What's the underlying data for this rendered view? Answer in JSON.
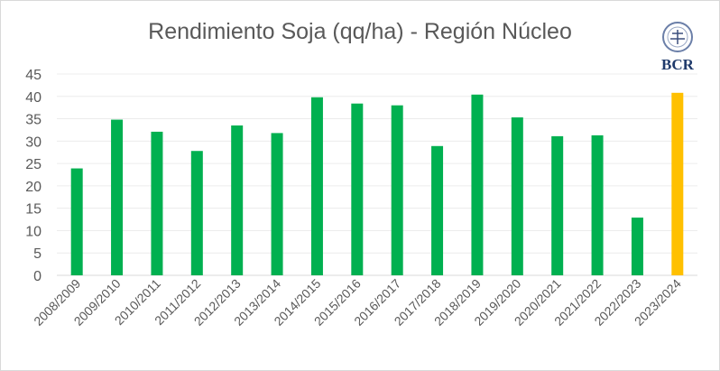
{
  "chart_data": {
    "type": "bar",
    "title": "Rendimiento Soja (qq/ha) - Región Núcleo",
    "xlabel": "",
    "ylabel": "",
    "ylim": [
      0,
      45
    ],
    "yticks": [
      0,
      5,
      10,
      15,
      20,
      25,
      30,
      35,
      40,
      45
    ],
    "grid": true,
    "categories": [
      "2008/2009",
      "2009/2010",
      "2010/2011",
      "2011/2012",
      "2012/2013",
      "2013/2014",
      "2014/2015",
      "2015/2016",
      "2016/2017",
      "2017/2018",
      "2018/2019",
      "2019/2020",
      "2020/2021",
      "2021/2022",
      "2022/2023",
      "2023/2024"
    ],
    "values": [
      23.9,
      34.8,
      32.1,
      27.8,
      33.5,
      31.8,
      39.8,
      38.4,
      38.0,
      28.9,
      40.4,
      35.3,
      31.1,
      31.3,
      12.9,
      40.8
    ],
    "colors": {
      "default": "#00b050",
      "highlight": "#ffc000"
    },
    "highlight_category": "2023/2024"
  },
  "logo": {
    "text": "BCR"
  }
}
